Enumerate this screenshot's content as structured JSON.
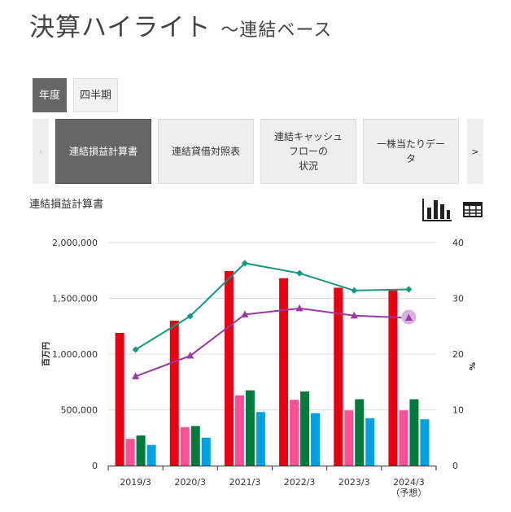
{
  "header": {
    "title": "決算ハイライト",
    "subtitle": "～連結ベース"
  },
  "period_tabs": [
    {
      "label": "年度",
      "active": true
    },
    {
      "label": "四半期",
      "active": false
    }
  ],
  "statement_tabs": {
    "prev_arrow": "‹",
    "next_arrow": ">",
    "items": [
      {
        "lines": [
          "連結損益計算書"
        ],
        "active": true
      },
      {
        "lines": [
          "連結貸借対照表"
        ],
        "active": false
      },
      {
        "lines": [
          "連結キャッシュ",
          "フローの",
          "状況"
        ],
        "active": false
      },
      {
        "lines": [
          "一株当たりデー",
          "タ"
        ],
        "active": false
      }
    ]
  },
  "chart_section": {
    "title": "連結損益計算書",
    "view_buttons": [
      "bar-chart-icon",
      "table-icon"
    ]
  },
  "colors": {
    "series": [
      "#e60012",
      "#ff4f95",
      "#007a3d",
      "#00a0e0"
    ],
    "lines": [
      "#13977e",
      "#9c37a4"
    ],
    "highlight": "#d8b2dc"
  },
  "chart_data": {
    "type": "bar",
    "categories": [
      [
        "2019/3"
      ],
      [
        "2020/3"
      ],
      [
        "2021/3"
      ],
      [
        "2022/3"
      ],
      [
        "2023/3"
      ],
      [
        "2024/3",
        "（予想）"
      ]
    ],
    "series": [
      {
        "name": "series-1",
        "axis": "left",
        "values": [
          1190000,
          1300000,
          1745000,
          1680000,
          1595000,
          1570000
        ]
      },
      {
        "name": "series-2",
        "axis": "left",
        "values": [
          240000,
          345000,
          630000,
          590000,
          495000,
          495000
        ]
      },
      {
        "name": "series-3",
        "axis": "left",
        "values": [
          270000,
          355000,
          675000,
          665000,
          595000,
          595000
        ]
      },
      {
        "name": "series-4",
        "axis": "left",
        "values": [
          185000,
          250000,
          480000,
          470000,
          425000,
          415000
        ]
      }
    ],
    "line_series": [
      {
        "name": "line-1",
        "axis": "right",
        "marker": "diamond",
        "values": [
          20.8,
          26.8,
          36.3,
          34.5,
          31.4,
          31.6
        ]
      },
      {
        "name": "line-2",
        "axis": "right",
        "marker": "triangle",
        "values": [
          16.0,
          19.7,
          27.1,
          28.2,
          26.9,
          26.5
        ]
      }
    ],
    "ylabel": "百万円",
    "y2label": "%",
    "ylim": [
      0,
      2000000
    ],
    "y2lim": [
      0,
      40
    ],
    "yticks": [
      "0",
      "500,000",
      "1,000,000",
      "1,500,000",
      "2,000,000"
    ],
    "y2ticks": [
      "0",
      "10",
      "20",
      "30",
      "40"
    ],
    "grid": true
  }
}
